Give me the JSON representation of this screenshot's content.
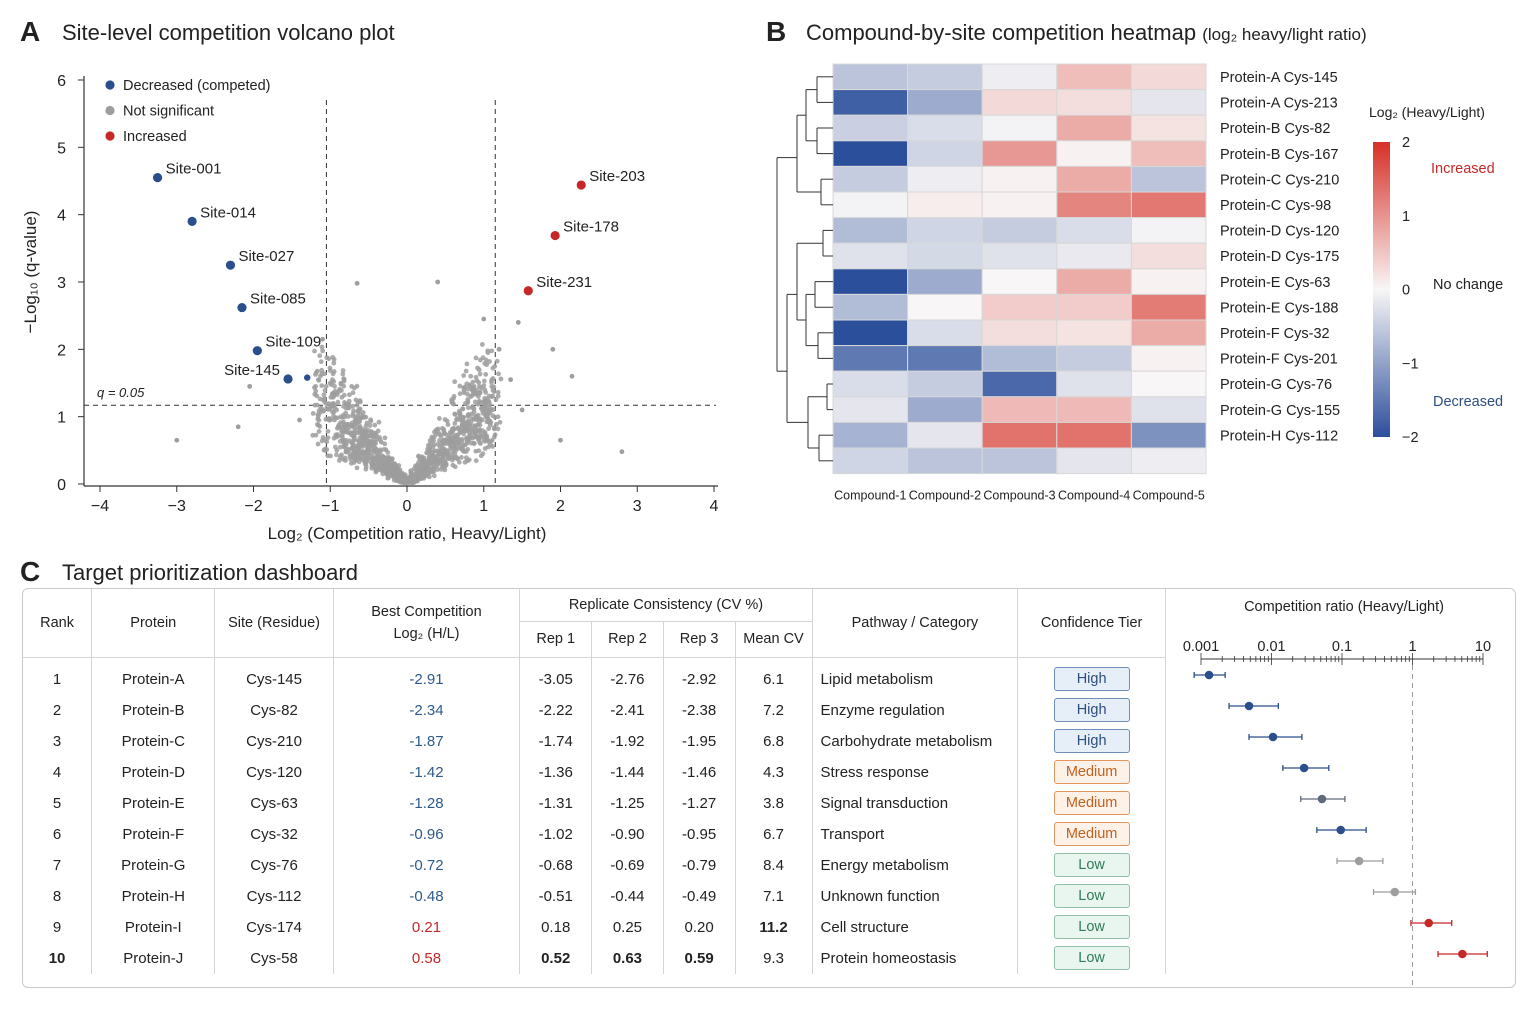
{
  "panels": {
    "a": {
      "letter": "A",
      "title": "Site-level competition volcano plot"
    },
    "b": {
      "letter": "B",
      "title": "Compound-by-site competition heatmap",
      "title_paren": "(log₂ heavy/light ratio)"
    },
    "c": {
      "letter": "C",
      "title": "Target prioritization dashboard"
    }
  },
  "chart_data": [
    {
      "type": "scatter",
      "title": "Site-level competition volcano plot",
      "xlabel": "Log₂ (Competition ratio, Heavy/Light)",
      "ylabel": "−Log₁₀ (q-value)",
      "xlim": [
        -4,
        4
      ],
      "ylim": [
        0,
        6
      ],
      "xticks": [
        -4,
        -3,
        -2,
        -1,
        0,
        1,
        2,
        3,
        4
      ],
      "yticks": [
        0,
        1,
        2,
        3,
        4,
        5,
        6
      ],
      "threshold_lines": {
        "x": [
          -1.05,
          1.15
        ],
        "y": 1.17,
        "y_label": "q = 0.05"
      },
      "legend_position": "top-left",
      "series": [
        {
          "name": "Decreased (competed)",
          "color": "#2b4e8c",
          "points": [
            {
              "x": -3.25,
              "y": 4.55,
              "label": "Site-001"
            },
            {
              "x": -2.8,
              "y": 3.9,
              "label": "Site-014"
            },
            {
              "x": -2.3,
              "y": 3.25,
              "label": "Site-027"
            },
            {
              "x": -2.15,
              "y": 2.62,
              "label": "Site-085"
            },
            {
              "x": -1.95,
              "y": 1.98,
              "label": "Site-109"
            },
            {
              "x": -1.55,
              "y": 1.56,
              "label": "Site-145"
            },
            {
              "x": -1.3,
              "y": 1.58,
              "label": ""
            }
          ]
        },
        {
          "name": "Not significant",
          "color": "#9e9e9e",
          "points": []
        },
        {
          "name": "Increased",
          "color": "#c62828",
          "points": [
            {
              "x": 2.27,
              "y": 4.44,
              "label": "Site-203"
            },
            {
              "x": 1.93,
              "y": 3.69,
              "label": "Site-178"
            },
            {
              "x": 1.58,
              "y": 2.87,
              "label": "Site-231"
            }
          ]
        }
      ]
    },
    {
      "type": "heatmap",
      "title": "Compound-by-site competition heatmap",
      "columns": [
        "Compound-1",
        "Compound-2",
        "Compound-3",
        "Compound-4",
        "Compound-5"
      ],
      "rows": [
        "Protein-A Cys-145",
        "Protein-A Cys-213",
        "Protein-B Cys-82",
        "Protein-B Cys-167",
        "Protein-C Cys-210",
        "Protein-C Cys-98",
        "Protein-D Cys-120",
        "Protein-D Cys-175",
        "Protein-E Cys-63",
        "Protein-E Cys-188",
        "Protein-F Cys-32",
        "Protein-F Cys-201",
        "Protein-G Cys-76",
        "Protein-G Cys-155",
        "Protein-H Cys-112",
        ""
      ],
      "values": [
        [
          -0.6,
          -0.5,
          -0.1,
          0.6,
          0.3
        ],
        [
          -1.8,
          -0.9,
          0.3,
          0.25,
          -0.2
        ],
        [
          -0.45,
          -0.3,
          -0.05,
          0.8,
          0.2
        ],
        [
          -2.0,
          -0.4,
          1.0,
          0.05,
          0.6
        ],
        [
          -0.5,
          -0.1,
          0.05,
          0.8,
          -0.6
        ],
        [
          -0.05,
          0.1,
          0.05,
          1.2,
          1.35
        ],
        [
          -0.7,
          -0.4,
          -0.5,
          -0.3,
          -0.05
        ],
        [
          -0.25,
          -0.35,
          -0.25,
          -0.15,
          0.25
        ],
        [
          -2.0,
          -0.9,
          0.0,
          0.8,
          0.05
        ],
        [
          -0.7,
          0.0,
          0.45,
          0.45,
          1.3
        ],
        [
          -2.0,
          -0.3,
          0.25,
          0.2,
          0.8
        ],
        [
          -1.5,
          -1.5,
          -0.7,
          -0.5,
          0.05
        ],
        [
          -0.3,
          -0.5,
          -1.7,
          -0.25,
          0.0
        ],
        [
          -0.2,
          -0.9,
          0.65,
          0.65,
          -0.25
        ],
        [
          -0.8,
          -0.2,
          1.4,
          1.4,
          -1.2
        ],
        [
          -0.4,
          -0.6,
          -0.6,
          -0.2,
          -0.1
        ]
      ],
      "colorbar": {
        "title": "Log₂ (Heavy/Light)",
        "min": -2,
        "max": 2,
        "ticks": [
          2,
          1,
          0,
          -1,
          -2
        ],
        "labels": {
          "increased": "Increased",
          "no_change": "No change",
          "decreased": "Decreased"
        },
        "colors": {
          "neg": "#2c4f9c",
          "mid": "#f8f6f6",
          "pos": "#d73027"
        }
      }
    },
    {
      "type": "scatter",
      "title": "Competition ratio (Heavy/Light)",
      "scale": "log",
      "xlim": [
        0.00075,
        25
      ],
      "tick_values": [
        0.001,
        0.01,
        0.1,
        1,
        10
      ],
      "tick_labels": [
        "0.001",
        "0.01",
        "0.1",
        "1",
        "10"
      ],
      "reference_line": 1,
      "points": [
        {
          "x": 0.0013,
          "lo": 0.0008,
          "hi": 0.0022,
          "color": "#2b4e8c"
        },
        {
          "x": 0.0048,
          "lo": 0.0025,
          "hi": 0.0125,
          "color": "#2b4e8c"
        },
        {
          "x": 0.0105,
          "lo": 0.0048,
          "hi": 0.027,
          "color": "#2b4e8c"
        },
        {
          "x": 0.029,
          "lo": 0.0145,
          "hi": 0.065,
          "color": "#2b4e8c"
        },
        {
          "x": 0.052,
          "lo": 0.026,
          "hi": 0.11,
          "color": "#5f6b7a"
        },
        {
          "x": 0.096,
          "lo": 0.044,
          "hi": 0.22,
          "color": "#2b4e8c"
        },
        {
          "x": 0.175,
          "lo": 0.085,
          "hi": 0.38,
          "color": "#9e9e9e"
        },
        {
          "x": 0.56,
          "lo": 0.28,
          "hi": 1.1,
          "color": "#9e9e9e"
        },
        {
          "x": 1.7,
          "lo": 0.95,
          "hi": 3.6,
          "color": "#c62828"
        },
        {
          "x": 5.1,
          "lo": 2.3,
          "hi": 11.5,
          "color": "#c62828"
        }
      ]
    }
  ],
  "table": {
    "headers": {
      "rank": "Rank",
      "protein": "Protein",
      "site": "Site (Residue)",
      "best": "Best Competition",
      "best_sub": "Log₂ (H/L)",
      "replicate": "Replicate Consistency (CV %)",
      "rep1": "Rep 1",
      "rep2": "Rep 2",
      "rep3": "Rep 3",
      "mean_cv": "Mean CV",
      "pathway": "Pathway / Category",
      "tier": "Confidence Tier",
      "forest": "Competition ratio (Heavy/Light)"
    },
    "rows": [
      {
        "rank": "1",
        "protein": "Protein-A",
        "site": "Cys-145",
        "best": "-2.91",
        "rep1": "-3.05",
        "rep2": "-2.76",
        "rep3": "-2.92",
        "cv": "6.1",
        "pathway": "Lipid metabolism",
        "tier": "High"
      },
      {
        "rank": "2",
        "protein": "Protein-B",
        "site": "Cys-82",
        "best": "-2.34",
        "rep1": "-2.22",
        "rep2": "-2.41",
        "rep3": "-2.38",
        "cv": "7.2",
        "pathway": "Enzyme regulation",
        "tier": "High"
      },
      {
        "rank": "3",
        "protein": "Protein-C",
        "site": "Cys-210",
        "best": "-1.87",
        "rep1": "-1.74",
        "rep2": "-1.92",
        "rep3": "-1.95",
        "cv": "6.8",
        "pathway": "Carbohydrate metabolism",
        "tier": "High"
      },
      {
        "rank": "4",
        "protein": "Protein-D",
        "site": "Cys-120",
        "best": "-1.42",
        "rep1": "-1.36",
        "rep2": "-1.44",
        "rep3": "-1.46",
        "cv": "4.3",
        "pathway": "Stress response",
        "tier": "Medium"
      },
      {
        "rank": "5",
        "protein": "Protein-E",
        "site": "Cys-63",
        "best": "-1.28",
        "rep1": "-1.31",
        "rep2": "-1.25",
        "rep3": "-1.27",
        "cv": "3.8",
        "pathway": "Signal transduction",
        "tier": "Medium"
      },
      {
        "rank": "6",
        "protein": "Protein-F",
        "site": "Cys-32",
        "best": "-0.96",
        "rep1": "-1.02",
        "rep2": "-0.90",
        "rep3": "-0.95",
        "cv": "6.7",
        "pathway": "Transport",
        "tier": "Medium"
      },
      {
        "rank": "7",
        "protein": "Protein-G",
        "site": "Cys-76",
        "best": "-0.72",
        "rep1": "-0.68",
        "rep2": "-0.69",
        "rep3": "-0.79",
        "cv": "8.4",
        "pathway": "Energy metabolism",
        "tier": "Low"
      },
      {
        "rank": "8",
        "protein": "Protein-H",
        "site": "Cys-112",
        "best": "-0.48",
        "rep1": "-0.51",
        "rep2": "-0.44",
        "rep3": "-0.49",
        "cv": "7.1",
        "pathway": "Unknown function",
        "tier": "Low"
      },
      {
        "rank": "9",
        "protein": "Protein-I",
        "site": "Cys-174",
        "best": "0.21",
        "rep1": "0.18",
        "rep2": "0.25",
        "rep3": "0.20",
        "cv": "11.2",
        "pathway": "Cell structure",
        "tier": "Low"
      },
      {
        "rank": "10",
        "protein": "Protein-J",
        "site": "Cys-58",
        "best": "0.58",
        "rep1": "0.52",
        "rep2": "0.63",
        "rep3": "0.59",
        "cv": "9.3",
        "pathway": "Protein homeostasis",
        "tier": "Low"
      }
    ]
  }
}
